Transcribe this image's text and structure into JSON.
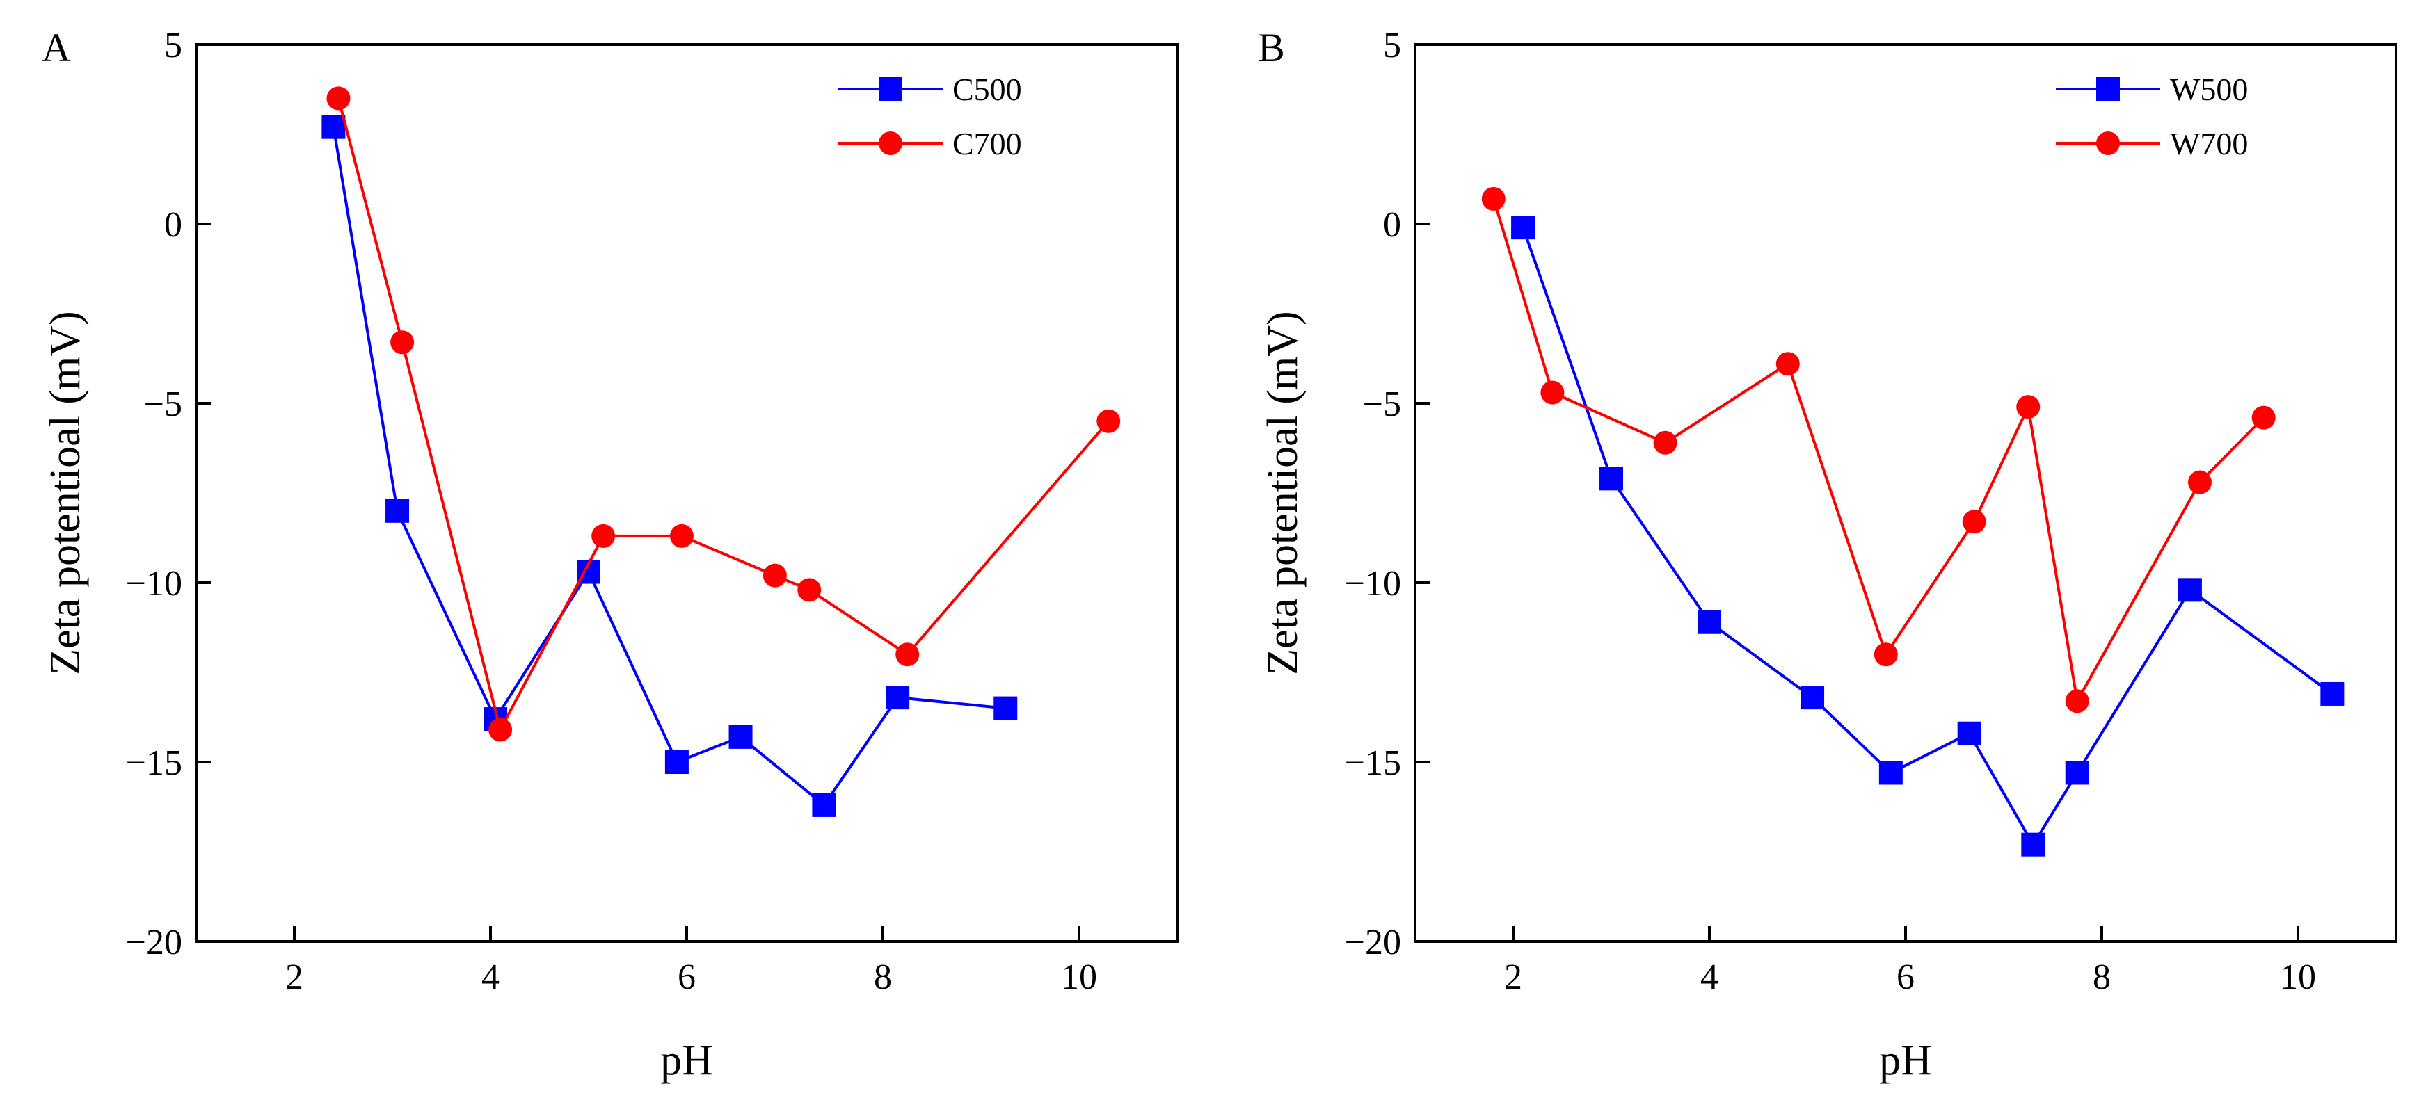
{
  "chart_data": [
    {
      "type": "line",
      "panel_label": "A",
      "xlabel": "pH",
      "ylabel": "Zeta potentioal (mV)",
      "xlim": [
        1,
        11
      ],
      "ylim": [
        -20,
        5
      ],
      "xticks": [
        2,
        4,
        6,
        8,
        10
      ],
      "yticks": [
        5,
        0,
        -5,
        -10,
        -15,
        -20
      ],
      "xtick_labels": [
        "2",
        "4",
        "6",
        "8",
        "10"
      ],
      "ytick_labels": [
        "5",
        "0",
        "−5",
        "−10",
        "−15",
        "−20"
      ],
      "grid": false,
      "legend_position": "top-right",
      "series": [
        {
          "name": "C500",
          "color": "#0000ff",
          "marker": "square",
          "x": [
            2.4,
            3.05,
            4.05,
            5.0,
            5.9,
            6.55,
            7.4,
            8.15,
            9.25
          ],
          "y": [
            2.7,
            -8.0,
            -13.8,
            -9.7,
            -15.0,
            -14.3,
            -16.2,
            -13.2,
            -13.5
          ]
        },
        {
          "name": "C700",
          "color": "#ff0000",
          "marker": "circle",
          "x": [
            2.45,
            3.1,
            4.1,
            5.15,
            5.95,
            6.9,
            7.25,
            8.25,
            10.3
          ],
          "y": [
            3.5,
            -3.3,
            -14.1,
            -8.7,
            -8.7,
            -9.8,
            -10.2,
            -12.0,
            -5.5
          ]
        }
      ]
    },
    {
      "type": "line",
      "panel_label": "B",
      "xlabel": "pH",
      "ylabel": "Zeta potentioal (mV)",
      "xlim": [
        1,
        11
      ],
      "ylim": [
        -20,
        5
      ],
      "xticks": [
        2,
        4,
        6,
        8,
        10
      ],
      "yticks": [
        5,
        0,
        -5,
        -10,
        -15,
        -20
      ],
      "xtick_labels": [
        "2",
        "4",
        "6",
        "8",
        "10"
      ],
      "ytick_labels": [
        "5",
        "0",
        "−5",
        "−10",
        "−15",
        "−20"
      ],
      "grid": false,
      "legend_position": "top-right",
      "series": [
        {
          "name": "W500",
          "color": "#0000ff",
          "marker": "square",
          "x": [
            2.1,
            3.0,
            4.0,
            5.05,
            5.85,
            6.65,
            7.3,
            7.75,
            8.9,
            10.35
          ],
          "y": [
            -0.1,
            -7.1,
            -11.1,
            -13.2,
            -15.3,
            -14.2,
            -17.3,
            -15.3,
            -10.2,
            -13.1
          ]
        },
        {
          "name": "W700",
          "color": "#ff0000",
          "marker": "circle",
          "x": [
            1.8,
            2.4,
            3.55,
            4.8,
            5.8,
            6.7,
            7.25,
            7.75,
            9.0,
            9.65
          ],
          "y": [
            0.7,
            -4.7,
            -6.1,
            -3.9,
            -12.0,
            -8.3,
            -5.1,
            -13.3,
            -7.2,
            -5.4
          ]
        }
      ]
    }
  ]
}
